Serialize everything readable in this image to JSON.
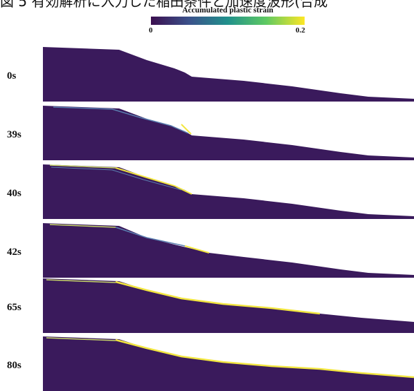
{
  "caption": "図 5 有効解析に入力した稲田条件と加速度波形(合成",
  "colorbar": {
    "title": "Accumulated plastic strain",
    "min_label": "0",
    "max_label": "0.2",
    "colors": [
      "#3b0f4f",
      "#3b528b",
      "#21918c",
      "#5ec962",
      "#fde725"
    ]
  },
  "panels": [
    {
      "time": "0s"
    },
    {
      "time": "39s"
    },
    {
      "time": "40s"
    },
    {
      "time": "42s"
    },
    {
      "time": "65s"
    },
    {
      "time": "80s"
    }
  ],
  "colors": {
    "body": "#3a1a5c",
    "strain_high": "#f2e640",
    "strain_mid": "#5b7fb0"
  }
}
